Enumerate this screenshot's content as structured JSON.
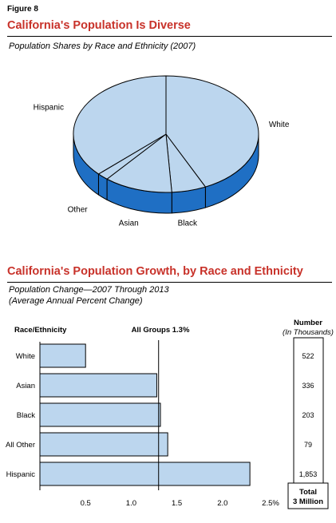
{
  "figure_label": "Figure 8",
  "colors": {
    "title_red": "#c8322a",
    "pie_top": "#bcd6ee",
    "pie_side": "#1f6fc4",
    "bar_fill": "#bcd6ee",
    "outline": "#000000"
  },
  "chart_data": [
    {
      "type": "pie",
      "title": "California's Population Is Diverse",
      "subtitle": "Population Shares by Race and Ethnicity (2007)",
      "three_d": true,
      "slices": [
        {
          "label": "White",
          "value": 43
        },
        {
          "label": "Black",
          "value": 6
        },
        {
          "label": "Asian",
          "value": 12
        },
        {
          "label": "Other",
          "value": 2
        },
        {
          "label": "Hispanic",
          "value": 37
        }
      ]
    },
    {
      "type": "bar",
      "orientation": "horizontal",
      "title": "California's Population Growth, by Race and Ethnicity",
      "subtitle_line1": "Population Change—2007 Through 2013",
      "subtitle_line2": "(Average Annual Percent Change)",
      "category_header": "Race/Ethnicity",
      "categories": [
        "White",
        "Asian",
        "Black",
        "All Other",
        "Hispanic"
      ],
      "values": [
        0.5,
        1.28,
        1.32,
        1.4,
        2.3
      ],
      "xlim": [
        0,
        2.5
      ],
      "ticks": [
        0.5,
        1.0,
        1.5,
        2.0,
        2.5
      ],
      "tick_labels": [
        "0.5",
        "1.0",
        "1.5",
        "2.0",
        "2.5%"
      ],
      "reference_line": {
        "label": "All Groups 1.3%",
        "value": 1.3
      },
      "number_header_line1": "Number",
      "number_header_line2": "(In Thousands)",
      "numbers": [
        "522",
        "336",
        "203",
        "79",
        "1,853"
      ],
      "total_line1": "Total",
      "total_line2": "3 Million"
    }
  ]
}
